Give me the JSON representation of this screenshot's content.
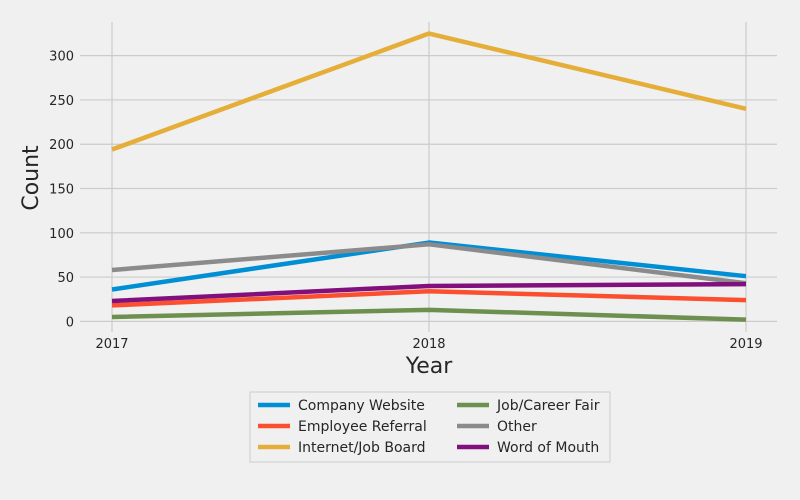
{
  "chart_data": {
    "type": "line",
    "title": "",
    "xlabel": "Year",
    "ylabel": "Count",
    "x": [
      "2017",
      "2018",
      "2019"
    ],
    "ylim": [
      -12,
      338
    ],
    "yticks": [
      0,
      50,
      100,
      150,
      200,
      250,
      300
    ],
    "grid": true,
    "legend_position": "bottom-center",
    "series": [
      {
        "name": "Company Website",
        "color": "#008fd5",
        "values": [
          36,
          89,
          51
        ]
      },
      {
        "name": "Employee Referral",
        "color": "#fc4f30",
        "values": [
          18,
          34,
          24
        ]
      },
      {
        "name": "Internet/Job Board",
        "color": "#e5ae38",
        "values": [
          194,
          325,
          240
        ]
      },
      {
        "name": "Job/Career Fair",
        "color": "#6d904f",
        "values": [
          5,
          13,
          2
        ]
      },
      {
        "name": "Other",
        "color": "#8b8b8b",
        "values": [
          58,
          87,
          43
        ]
      },
      {
        "name": "Word of Mouth",
        "color": "#810f7c",
        "values": [
          23,
          40,
          42
        ]
      }
    ]
  }
}
